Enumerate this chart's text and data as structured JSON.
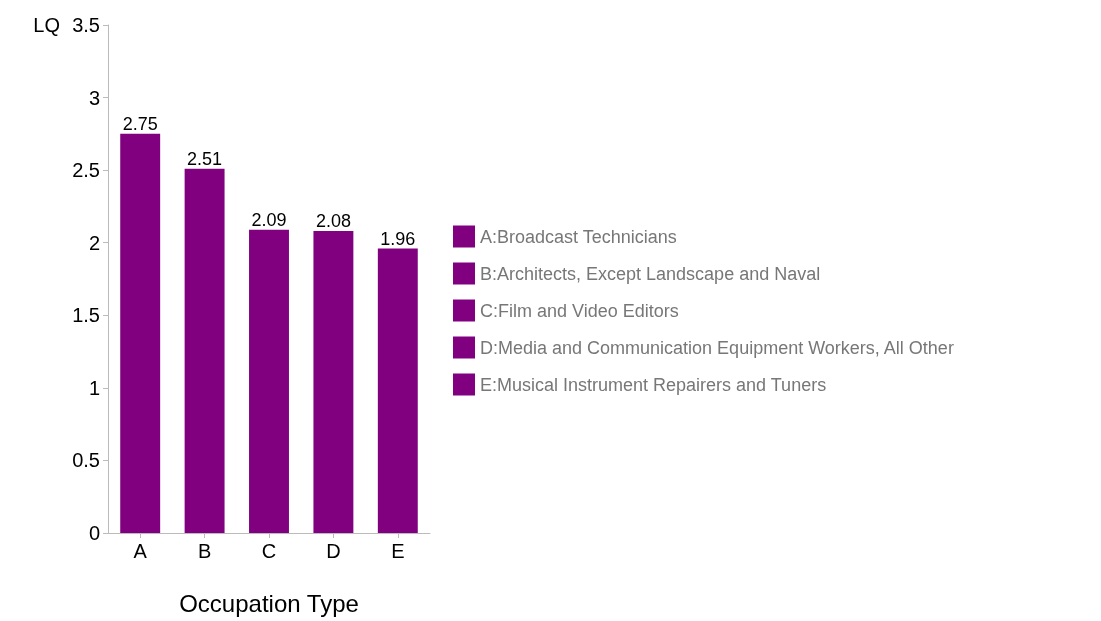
{
  "chart_data": {
    "type": "bar",
    "xlabel": "Occupation Type",
    "ylabel": "LQ",
    "categories": [
      "A",
      "B",
      "C",
      "D",
      "E"
    ],
    "series": [
      {
        "name": "A:Broadcast Technicians",
        "color": "#800080",
        "values": [
          2.75,
          null,
          null,
          null,
          null
        ]
      },
      {
        "name": "B:Architects, Except Landscape and Naval",
        "color": "#800080",
        "values": [
          null,
          2.51,
          null,
          null,
          null
        ]
      },
      {
        "name": "C:Film and Video Editors",
        "color": "#800080",
        "values": [
          null,
          null,
          2.09,
          null,
          null
        ]
      },
      {
        "name": "D:Media and Communication Equipment Workers, All Other",
        "color": "#800080",
        "values": [
          null,
          null,
          null,
          2.08,
          null
        ]
      },
      {
        "name": "E:Musical Instrument Repairers and Tuners",
        "color": "#800080",
        "values": [
          null,
          null,
          null,
          null,
          1.96
        ]
      }
    ],
    "stacked": true,
    "ylim": [
      0,
      3.5
    ],
    "yticks": [
      0,
      0.5,
      1,
      1.5,
      2,
      2.5,
      3,
      3.5
    ],
    "data_labels": true,
    "grid": false,
    "legend": "right"
  }
}
